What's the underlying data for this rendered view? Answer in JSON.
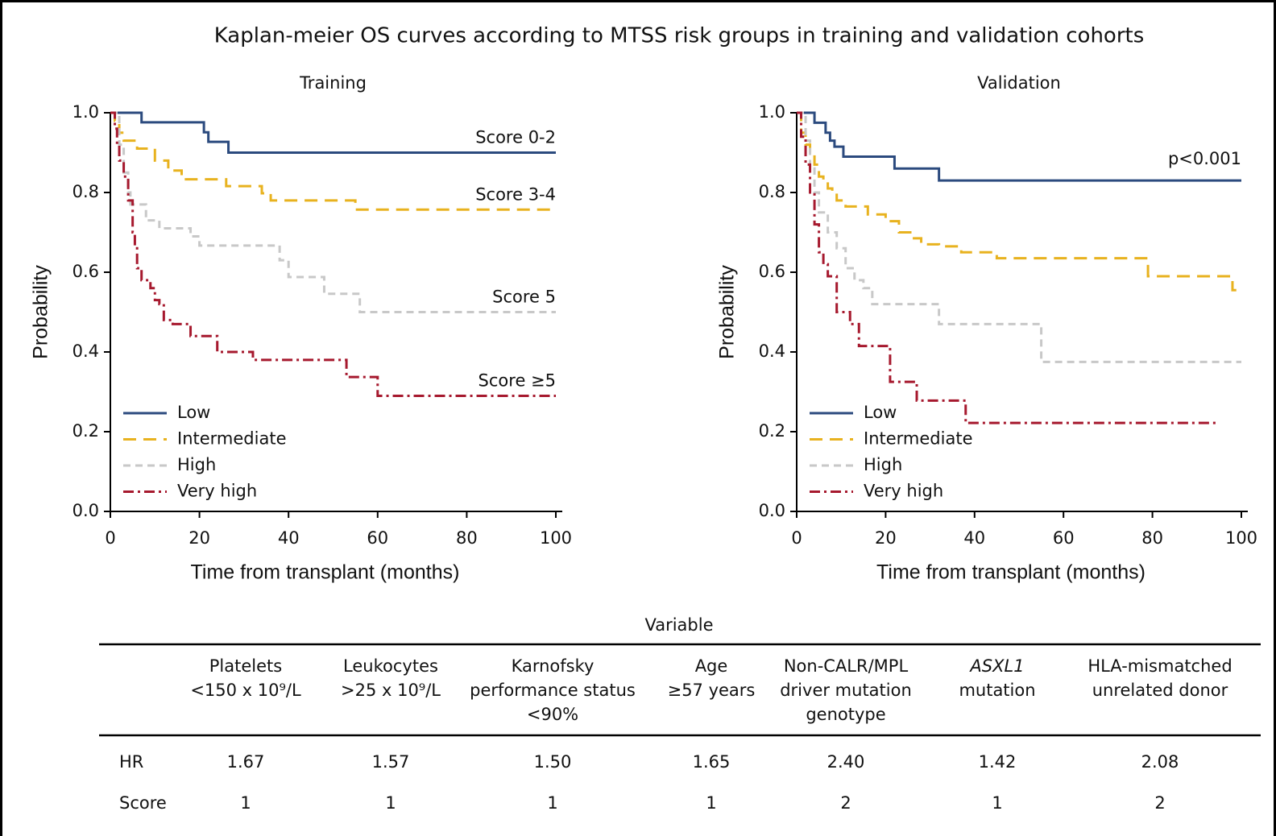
{
  "title": "Kaplan-meier OS curves according to MTSS risk groups in training and validation cohorts",
  "chart_data": [
    {
      "type": "line",
      "drawstyle": "steps-post",
      "title": "Training",
      "xlabel": "Time from transplant (months)",
      "ylabel": "Probability",
      "xlim": [
        0,
        100
      ],
      "ylim": [
        0,
        1.0
      ],
      "xticks": [
        0,
        20,
        40,
        60,
        80,
        100
      ],
      "yticks": [
        {
          "value": 0,
          "label": "0.0"
        },
        {
          "value": 0.2,
          "label": "0.2"
        },
        {
          "value": 0.4,
          "label": "0.4"
        },
        {
          "value": 0.6,
          "label": "0.6"
        },
        {
          "value": 0.8,
          "label": "0.8"
        },
        {
          "value": 1.0,
          "label": "1.0"
        }
      ],
      "legend": "lower left",
      "series": [
        {
          "name": "Low",
          "color": "#2b4a7e",
          "dash": "solid",
          "end_label": "Score 0-2",
          "x": [
            0,
            7,
            21,
            22,
            26.5,
            100
          ],
          "values": [
            1.0,
            0.976,
            0.951,
            0.927,
            0.9,
            0.9
          ]
        },
        {
          "name": "Intermediate",
          "color": "#e8b21f",
          "dash": "long",
          "end_label": "Score 3-4",
          "x": [
            0,
            1,
            2,
            3,
            6,
            10,
            13,
            16,
            26,
            34,
            36,
            55,
            100
          ],
          "values": [
            1.0,
            0.98,
            0.95,
            0.93,
            0.91,
            0.88,
            0.855,
            0.833,
            0.816,
            0.798,
            0.78,
            0.757,
            0.757
          ]
        },
        {
          "name": "High",
          "color": "#c8c8c8",
          "dash": "short",
          "end_label": "Score 5",
          "x": [
            0,
            2,
            3,
            4,
            4.5,
            8,
            11,
            18,
            20,
            38,
            40,
            48,
            56,
            100
          ],
          "values": [
            1.0,
            0.92,
            0.85,
            0.8,
            0.77,
            0.73,
            0.71,
            0.69,
            0.667,
            0.63,
            0.588,
            0.546,
            0.5,
            0.5
          ]
        },
        {
          "name": "Very high",
          "color": "#a6192e",
          "dash": "dashdot",
          "end_label": "Score ≥5",
          "x": [
            0,
            1,
            1.5,
            2,
            3,
            4,
            5,
            5.5,
            6,
            7,
            9,
            10,
            11,
            12,
            14,
            18,
            24,
            32,
            53,
            60,
            100
          ],
          "values": [
            1.0,
            0.96,
            0.92,
            0.88,
            0.84,
            0.78,
            0.7,
            0.66,
            0.61,
            0.58,
            0.56,
            0.53,
            0.52,
            0.48,
            0.47,
            0.44,
            0.4,
            0.38,
            0.337,
            0.29,
            0.29
          ]
        }
      ]
    },
    {
      "type": "line",
      "drawstyle": "steps-post",
      "title": "Validation",
      "xlabel": "Time from transplant (months)",
      "ylabel": "Probability",
      "annotation": "p<0.001",
      "xlim": [
        0,
        100
      ],
      "ylim": [
        0,
        1.0
      ],
      "xticks": [
        0,
        20,
        40,
        60,
        80,
        100
      ],
      "yticks": [
        {
          "value": 0,
          "label": "0.0"
        },
        {
          "value": 0.2,
          "label": "0.2"
        },
        {
          "value": 0.4,
          "label": "0.4"
        },
        {
          "value": 0.6,
          "label": "0.6"
        },
        {
          "value": 0.8,
          "label": "0.8"
        },
        {
          "value": 1.0,
          "label": "1.0"
        }
      ],
      "legend": "lower left",
      "series": [
        {
          "name": "Low",
          "color": "#2b4a7e",
          "dash": "solid",
          "x": [
            0,
            4,
            6.5,
            7.5,
            8.5,
            10.5,
            22,
            32,
            100
          ],
          "values": [
            1.0,
            0.975,
            0.95,
            0.93,
            0.915,
            0.89,
            0.86,
            0.83,
            0.83
          ]
        },
        {
          "name": "Intermediate",
          "color": "#e8b21f",
          "dash": "long",
          "x": [
            0,
            1,
            2,
            3,
            4,
            5,
            6,
            7,
            8,
            9,
            11,
            16,
            20,
            23,
            26,
            28,
            32,
            37,
            45,
            79,
            98,
            100
          ],
          "values": [
            1.0,
            0.95,
            0.92,
            0.9,
            0.87,
            0.84,
            0.83,
            0.81,
            0.8,
            0.78,
            0.765,
            0.745,
            0.728,
            0.7,
            0.685,
            0.67,
            0.665,
            0.65,
            0.635,
            0.59,
            0.555,
            0.555
          ]
        },
        {
          "name": "High",
          "color": "#c8c8c8",
          "dash": "short",
          "x": [
            0,
            2,
            3,
            4,
            5,
            7,
            9,
            11,
            13,
            15,
            17,
            32,
            55,
            100
          ],
          "values": [
            1.0,
            0.93,
            0.86,
            0.8,
            0.75,
            0.7,
            0.66,
            0.61,
            0.58,
            0.56,
            0.52,
            0.47,
            0.375,
            0.375
          ]
        },
        {
          "name": "Very high",
          "color": "#a6192e",
          "dash": "dashdot",
          "x": [
            0,
            1,
            2,
            3,
            4,
            5,
            6,
            7,
            9,
            12,
            14,
            21,
            27,
            38,
            95
          ],
          "values": [
            1.0,
            0.94,
            0.87,
            0.8,
            0.72,
            0.65,
            0.62,
            0.59,
            0.5,
            0.47,
            0.415,
            0.325,
            0.278,
            0.222,
            0.222
          ]
        }
      ]
    }
  ],
  "table": {
    "caption": "Variable",
    "columns": [
      [
        "Platelets",
        "<150 x 10⁹/L"
      ],
      [
        "Leukocytes",
        ">25 x 10⁹/L"
      ],
      [
        "Karnofsky",
        "performance status",
        "<90%"
      ],
      [
        "Age",
        "≥57 years"
      ],
      [
        "Non-CALR/MPL",
        "driver mutation",
        "genotype"
      ],
      [
        "ASXL1",
        "mutation"
      ],
      [
        "HLA-mismatched",
        "unrelated donor"
      ]
    ],
    "rows": [
      [
        "HR",
        "1.67",
        "1.57",
        "1.50",
        "1.65",
        "2.40",
        "1.42",
        "2.08"
      ],
      [
        "Score",
        "1",
        "1",
        "1",
        "1",
        "2",
        "1",
        "2"
      ]
    ]
  }
}
